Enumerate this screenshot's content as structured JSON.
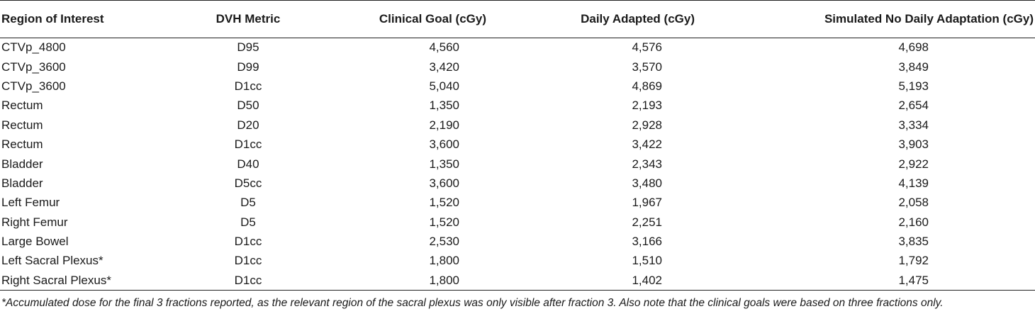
{
  "table": {
    "headers": [
      "Region of Interest",
      "DVH Metric",
      "Clinical Goal (cGy)",
      "Daily Adapted (cGy)",
      "Simulated No Daily Adaptation (cGy)"
    ],
    "rows": [
      [
        "CTVp_4800",
        "D95",
        "4,560",
        "4,576",
        "4,698"
      ],
      [
        "CTVp_3600",
        "D99",
        "3,420",
        "3,570",
        "3,849"
      ],
      [
        "CTVp_3600",
        "D1cc",
        "5,040",
        "4,869",
        "5,193"
      ],
      [
        "Rectum",
        "D50",
        "1,350",
        "2,193",
        "2,654"
      ],
      [
        "Rectum",
        "D20",
        "2,190",
        "2,928",
        "3,334"
      ],
      [
        "Rectum",
        "D1cc",
        "3,600",
        "3,422",
        "3,903"
      ],
      [
        "Bladder",
        "D40",
        "1,350",
        "2,343",
        "2,922"
      ],
      [
        "Bladder",
        "D5cc",
        "3,600",
        "3,480",
        "4,139"
      ],
      [
        "Left Femur",
        "D5",
        "1,520",
        "1,967",
        "2,058"
      ],
      [
        "Right Femur",
        "D5",
        "1,520",
        "2,251",
        "2,160"
      ],
      [
        "Large Bowel",
        "D1cc",
        "2,530",
        "3,166",
        "3,835"
      ],
      [
        "Left Sacral Plexus*",
        "D1cc",
        "1,800",
        "1,510",
        "1,792"
      ],
      [
        "Right Sacral Plexus*",
        "D1cc",
        "1,800",
        "1,402",
        "1,475"
      ]
    ]
  },
  "footnote": "*Accumulated dose for the final 3 fractions reported, as the relevant region of the sacral plexus was only visible after fraction 3. Also note that the clinical goals were based on three fractions only."
}
